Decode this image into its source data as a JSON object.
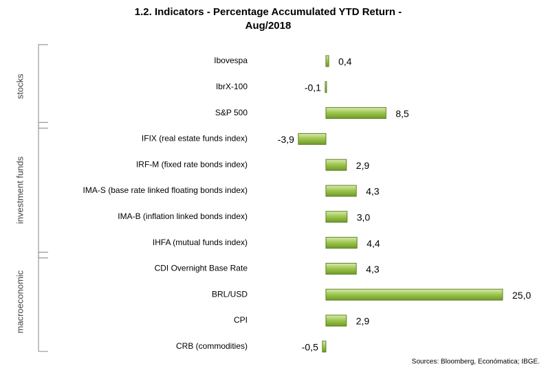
{
  "chart_data": {
    "type": "bar",
    "orientation": "horizontal",
    "title": "1.2. Indicators - Percentage Accumulated YTD Return - Aug/2018",
    "categories": [
      "Ibovespa",
      "IbrX-100",
      "S&P 500",
      "IFIX (real estate funds index)",
      "IRF-M (fixed rate bonds index)",
      "IMA-S (base rate linked floating bonds index)",
      "IMA-B (inflation linked bonds index)",
      "IHFA (mutual funds index)",
      "CDI Overnight Base Rate",
      "BRL/USD",
      "CPI",
      "CRB (commodities)"
    ],
    "values": [
      0.4,
      -0.1,
      8.5,
      -3.9,
      2.9,
      4.3,
      3.0,
      4.4,
      4.3,
      25.0,
      2.9,
      -0.5
    ],
    "value_labels": [
      "0,4",
      "-0,1",
      "8,5",
      "-3,9",
      "2,9",
      "4,3",
      "3,0",
      "4,4",
      "4,3",
      "25,0",
      "2,9",
      "-0,5"
    ],
    "color": "#9bc44a",
    "groups": [
      "stocks",
      "investment funds",
      "macroeconomic"
    ],
    "source": "Sources: Bloomberg, Económatica; IBGE."
  }
}
